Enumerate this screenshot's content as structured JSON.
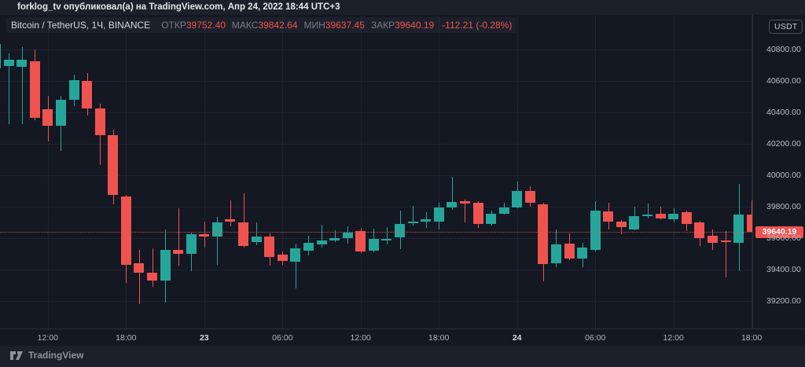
{
  "attribution": {
    "text": "forklog_tv опубликовал(а) на TradingView.com, Апр 24, 2022 18:44 UTC+3"
  },
  "legend": {
    "symbol": "Bitcoin / TetherUS, 1Ч, BINANCE",
    "ohlc": [
      {
        "label": "ОТКР",
        "value": "39752.40"
      },
      {
        "label": "МАКС",
        "value": "39842.64"
      },
      {
        "label": "МИН",
        "value": "39637.45"
      },
      {
        "label": "ЗАКР",
        "value": "39640.19"
      }
    ],
    "change": "-112.21 (-0.28%)"
  },
  "price_axis": {
    "currency_badge": "USDT",
    "ticks": [
      40800,
      40600,
      40400,
      40200,
      40000,
      39800,
      39600,
      39400,
      39200
    ],
    "last_price_label": "39640.19"
  },
  "time_axis": {
    "ticks": [
      {
        "index": 4,
        "label": "12:00",
        "bold": false
      },
      {
        "index": 10,
        "label": "18:00",
        "bold": false
      },
      {
        "index": 16,
        "label": "23",
        "bold": true
      },
      {
        "index": 22,
        "label": "06:00",
        "bold": false
      },
      {
        "index": 28,
        "label": "12:00",
        "bold": false
      },
      {
        "index": 34,
        "label": "18:00",
        "bold": false
      },
      {
        "index": 40,
        "label": "24",
        "bold": true
      },
      {
        "index": 46,
        "label": "06:00",
        "bold": false
      },
      {
        "index": 52,
        "label": "12:00",
        "bold": false
      },
      {
        "index": 58,
        "label": "18:00",
        "bold": false
      }
    ]
  },
  "footer": {
    "brand": "TradingView",
    "logo": "tradingview-logo"
  },
  "colors": {
    "up": "#26a69a",
    "down": "#ef5350",
    "price_line": "#ef5350",
    "background": "#141823",
    "outer_bars": "#1b202b",
    "grid": "#1e2330",
    "axis_text": "#b8bcc5"
  },
  "chart_data": {
    "type": "candlestick",
    "title": "Bitcoin / TetherUS",
    "exchange": "BINANCE",
    "interval": "1Ч",
    "quote_currency": "USDT",
    "start_time": "2022-04-22 08:00",
    "step_hours": 1,
    "ylim": [
      39025,
      41020
    ],
    "grid": true,
    "last_close": 39640.19,
    "current_bar_ohlc": {
      "open": 39752.4,
      "high": 39842.64,
      "low": 39637.45,
      "close": 39640.19,
      "change": -112.21,
      "change_pct": -0.28
    },
    "candles_ohlc": [
      [
        40680,
        40855,
        40640,
        40835
      ],
      [
        40695,
        40775,
        40325,
        40735
      ],
      [
        40690,
        40815,
        40325,
        40735
      ],
      [
        40725,
        40800,
        40350,
        40365
      ],
      [
        40420,
        40505,
        40215,
        40315
      ],
      [
        40315,
        40505,
        40155,
        40480
      ],
      [
        40480,
        40640,
        40440,
        40605
      ],
      [
        40600,
        40650,
        40380,
        40425
      ],
      [
        40425,
        40455,
        40065,
        40255
      ],
      [
        40255,
        40290,
        39815,
        39875
      ],
      [
        39865,
        39875,
        39315,
        39430
      ],
      [
        39440,
        39525,
        39180,
        39380
      ],
      [
        39380,
        39535,
        39290,
        39330
      ],
      [
        39330,
        39655,
        39190,
        39525
      ],
      [
        39525,
        39790,
        39425,
        39500
      ],
      [
        39500,
        39635,
        39390,
        39625
      ],
      [
        39625,
        39705,
        39540,
        39610
      ],
      [
        39610,
        39735,
        39430,
        39700
      ],
      [
        39720,
        39840,
        39675,
        39705
      ],
      [
        39700,
        39885,
        39540,
        39550
      ],
      [
        39575,
        39700,
        39555,
        39610
      ],
      [
        39610,
        39630,
        39425,
        39480
      ],
      [
        39495,
        39515,
        39430,
        39455
      ],
      [
        39450,
        39565,
        39280,
        39535
      ],
      [
        39520,
        39615,
        39490,
        39570
      ],
      [
        39560,
        39685,
        39540,
        39585
      ],
      [
        39585,
        39650,
        39575,
        39600
      ],
      [
        39600,
        39675,
        39565,
        39635
      ],
      [
        39645,
        39665,
        39505,
        39515
      ],
      [
        39520,
        39660,
        39510,
        39595
      ],
      [
        39585,
        39670,
        39560,
        39595
      ],
      [
        39605,
        39775,
        39530,
        39690
      ],
      [
        39695,
        39805,
        39680,
        39705
      ],
      [
        39705,
        39765,
        39665,
        39720
      ],
      [
        39705,
        39825,
        39655,
        39795
      ],
      [
        39795,
        39990,
        39780,
        39830
      ],
      [
        39835,
        39845,
        39700,
        39820
      ],
      [
        39825,
        39835,
        39665,
        39690
      ],
      [
        39690,
        39775,
        39680,
        39755
      ],
      [
        39755,
        39825,
        39750,
        39795
      ],
      [
        39795,
        39960,
        39790,
        39900
      ],
      [
        39900,
        39930,
        39800,
        39825
      ],
      [
        39815,
        39825,
        39325,
        39435
      ],
      [
        39440,
        39655,
        39415,
        39560
      ],
      [
        39565,
        39630,
        39460,
        39470
      ],
      [
        39470,
        39570,
        39415,
        39540
      ],
      [
        39525,
        39835,
        39515,
        39775
      ],
      [
        39770,
        39825,
        39655,
        39705
      ],
      [
        39705,
        39715,
        39625,
        39670
      ],
      [
        39655,
        39800,
        39650,
        39740
      ],
      [
        39745,
        39820,
        39725,
        39750
      ],
      [
        39755,
        39800,
        39720,
        39725
      ],
      [
        39720,
        39790,
        39700,
        39755
      ],
      [
        39765,
        39775,
        39645,
        39690
      ],
      [
        39700,
        39710,
        39550,
        39600
      ],
      [
        39615,
        39655,
        39525,
        39570
      ],
      [
        39585,
        39645,
        39350,
        39575
      ],
      [
        39570,
        39945,
        39390,
        39750
      ],
      [
        39752.4,
        39842.64,
        39637.45,
        39640.19
      ]
    ]
  }
}
